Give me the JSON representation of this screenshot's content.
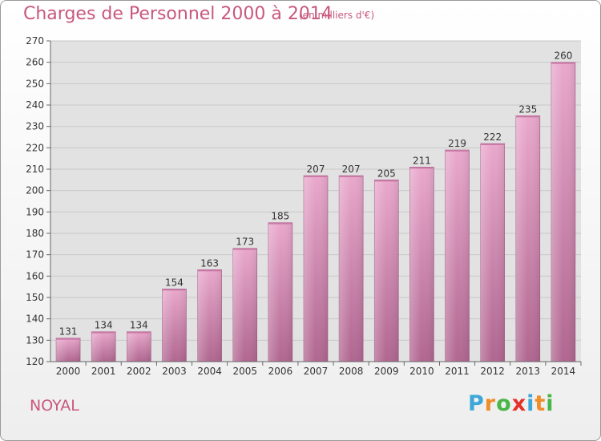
{
  "header": {
    "title": "Charges de Personnel 2000 à 2014",
    "subtitle": "(en milliers d'€)"
  },
  "footer": {
    "town": "NOYAL",
    "brand": "Proxiti"
  },
  "colors": {
    "title": "#c8587e",
    "bar_light": "#e9a8cc",
    "bar_dark": "#b06690",
    "grid": "#c8c8c8",
    "plot_bg": "#e2e2e2"
  },
  "chart_data": {
    "type": "bar",
    "title": "Charges de Personnel 2000 à 2014",
    "subtitle": "(en milliers d'€)",
    "categories": [
      "2000",
      "2001",
      "2002",
      "2003",
      "2004",
      "2005",
      "2006",
      "2007",
      "2008",
      "2009",
      "2010",
      "2011",
      "2012",
      "2013",
      "2014"
    ],
    "values": [
      131,
      134,
      134,
      154,
      163,
      173,
      185,
      207,
      207,
      205,
      211,
      219,
      222,
      235,
      260
    ],
    "ylim": [
      120,
      270
    ],
    "yticks": [
      120,
      130,
      140,
      150,
      160,
      170,
      180,
      190,
      200,
      210,
      220,
      230,
      240,
      250,
      260,
      270
    ],
    "grid": true,
    "data_labels": true
  }
}
